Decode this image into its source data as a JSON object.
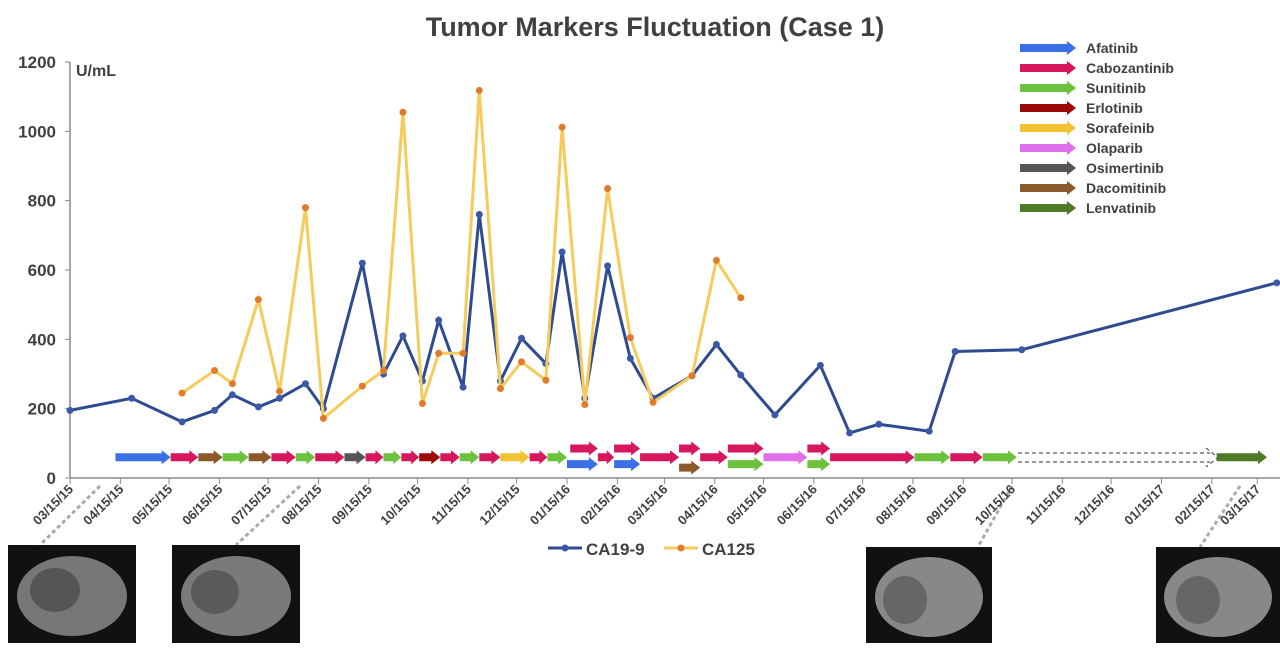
{
  "chart_data": {
    "type": "line",
    "title": "Tumor Markers Fluctuation (Case 1)",
    "y_unit": "U/mL",
    "xlim": [
      "2015-03-15",
      "2017-03-29"
    ],
    "ylim": [
      0,
      1200
    ],
    "yticks": [
      0,
      200,
      400,
      600,
      800,
      1000,
      1200
    ],
    "xticks": [
      {
        "value": "2015-03-15",
        "label": "03/15/15"
      },
      {
        "value": "2015-04-15",
        "label": "04/15/15"
      },
      {
        "value": "2015-05-15",
        "label": "05/15/15"
      },
      {
        "value": "2015-06-15",
        "label": "06/15/15"
      },
      {
        "value": "2015-07-15",
        "label": "07/15/15"
      },
      {
        "value": "2015-08-15",
        "label": "08/15/15"
      },
      {
        "value": "2015-09-15",
        "label": "09/15/15"
      },
      {
        "value": "2015-10-15",
        "label": "10/15/15"
      },
      {
        "value": "2015-11-15",
        "label": "11/15/15"
      },
      {
        "value": "2015-12-15",
        "label": "12/15/15"
      },
      {
        "value": "2016-01-15",
        "label": "01/15/16"
      },
      {
        "value": "2016-02-15",
        "label": "02/15/16"
      },
      {
        "value": "2016-03-15",
        "label": "03/15/16"
      },
      {
        "value": "2016-04-15",
        "label": "04/15/16"
      },
      {
        "value": "2016-05-15",
        "label": "05/15/16"
      },
      {
        "value": "2016-06-15",
        "label": "06/15/16"
      },
      {
        "value": "2016-07-15",
        "label": "07/15/16"
      },
      {
        "value": "2016-08-15",
        "label": "08/15/16"
      },
      {
        "value": "2016-09-15",
        "label": "09/15/16"
      },
      {
        "value": "2016-10-15",
        "label": "10/15/16"
      },
      {
        "value": "2016-11-15",
        "label": "11/15/16"
      },
      {
        "value": "2016-12-15",
        "label": "12/15/16"
      },
      {
        "value": "2017-01-15",
        "label": "01/15/17"
      },
      {
        "value": "2017-02-15",
        "label": "02/15/17"
      },
      {
        "value": "2017-03-15",
        "label": "03/15/17"
      }
    ],
    "x": [
      "2015-03-15",
      "2015-04-22",
      "2015-05-23",
      "2015-06-12",
      "2015-06-23",
      "2015-07-09",
      "2015-07-22",
      "2015-08-07",
      "2015-08-18",
      "2015-09-11",
      "2015-09-24",
      "2015-10-06",
      "2015-10-18",
      "2015-10-28",
      "2015-11-12",
      "2015-11-22",
      "2015-12-05",
      "2015-12-18",
      "2016-01-02",
      "2016-01-12",
      "2016-01-26",
      "2016-02-09",
      "2016-02-23",
      "2016-03-08",
      "2016-04-01",
      "2016-04-16",
      "2016-05-01",
      "2016-05-22",
      "2016-06-19",
      "2016-07-07",
      "2016-07-25",
      "2016-08-25",
      "2016-09-10",
      "2016-10-21",
      "2017-03-27"
    ],
    "series": [
      {
        "name": "CA19-9",
        "color": "#2f4b8f",
        "marker_color": "#3a5aa8",
        "values": [
          195,
          230,
          162,
          195,
          240,
          205,
          230,
          272,
          200,
          620,
          300,
          410,
          280,
          455,
          262,
          760,
          280,
          403,
          330,
          652,
          230,
          612,
          345,
          230,
          295,
          385,
          297,
          182,
          325,
          130,
          155,
          135,
          365,
          370,
          563
        ]
      },
      {
        "name": "CA125",
        "color": "#f5cb5c",
        "marker_color": "#e07b2a",
        "values": [
          null,
          null,
          245,
          310,
          272,
          515,
          250,
          780,
          172,
          265,
          310,
          1055,
          215,
          360,
          360,
          1118,
          258,
          335,
          282,
          1012,
          212,
          835,
          405,
          218,
          295,
          628,
          520,
          null,
          null,
          null,
          null,
          null,
          null,
          null,
          null
        ]
      }
    ],
    "drugs": [
      {
        "name": "Afatinib",
        "color": "#3b6fe6",
        "periods": [
          {
            "start": "2015-04-12",
            "end": "2015-05-16",
            "y": 60
          },
          {
            "start": "2016-01-15",
            "end": "2016-02-03",
            "y": 40
          },
          {
            "start": "2016-02-13",
            "end": "2016-02-29",
            "y": 40
          }
        ]
      },
      {
        "name": "Cabozantinib",
        "color": "#d6175e",
        "periods": [
          {
            "start": "2015-05-16",
            "end": "2015-06-02",
            "y": 60
          },
          {
            "start": "2015-07-17",
            "end": "2015-08-01",
            "y": 60
          },
          {
            "start": "2015-08-13",
            "end": "2015-08-31",
            "y": 60
          },
          {
            "start": "2015-09-13",
            "end": "2015-09-24",
            "y": 60
          },
          {
            "start": "2015-10-05",
            "end": "2015-10-16",
            "y": 60
          },
          {
            "start": "2015-10-29",
            "end": "2015-11-10",
            "y": 60
          },
          {
            "start": "2015-11-22",
            "end": "2015-12-05",
            "y": 60
          },
          {
            "start": "2015-12-23",
            "end": "2016-01-03",
            "y": 60
          },
          {
            "start": "2016-01-17",
            "end": "2016-02-03",
            "y": 85
          },
          {
            "start": "2016-02-03",
            "end": "2016-02-13",
            "y": 60
          },
          {
            "start": "2016-02-13",
            "end": "2016-02-29",
            "y": 85
          },
          {
            "start": "2016-02-29",
            "end": "2016-03-24",
            "y": 60
          },
          {
            "start": "2016-03-24",
            "end": "2016-04-06",
            "y": 85
          },
          {
            "start": "2016-04-06",
            "end": "2016-04-23",
            "y": 60
          },
          {
            "start": "2016-04-23",
            "end": "2016-05-15",
            "y": 85
          },
          {
            "start": "2016-06-11",
            "end": "2016-06-25",
            "y": 85
          },
          {
            "start": "2016-06-25",
            "end": "2016-08-16",
            "y": 60
          },
          {
            "start": "2016-09-07",
            "end": "2016-09-27",
            "y": 60
          }
        ]
      },
      {
        "name": "Sunitinib",
        "color": "#6cc23c",
        "periods": [
          {
            "start": "2015-06-17",
            "end": "2015-07-03",
            "y": 60
          },
          {
            "start": "2015-08-01",
            "end": "2015-08-13",
            "y": 60
          },
          {
            "start": "2015-09-24",
            "end": "2015-10-05",
            "y": 60
          },
          {
            "start": "2015-11-10",
            "end": "2015-11-22",
            "y": 60
          },
          {
            "start": "2016-01-03",
            "end": "2016-01-15",
            "y": 60
          },
          {
            "start": "2016-04-23",
            "end": "2016-05-15",
            "y": 40
          },
          {
            "start": "2016-06-11",
            "end": "2016-06-25",
            "y": 40
          },
          {
            "start": "2016-08-16",
            "end": "2016-09-07",
            "y": 60
          },
          {
            "start": "2016-09-27",
            "end": "2016-10-18",
            "y": 60
          }
        ]
      },
      {
        "name": "Erlotinib",
        "color": "#9b0a0a",
        "periods": [
          {
            "start": "2015-10-16",
            "end": "2015-10-29",
            "y": 60
          }
        ]
      },
      {
        "name": "Sorafeinib",
        "color": "#f2c232",
        "periods": [
          {
            "start": "2015-12-05",
            "end": "2015-12-23",
            "y": 60
          }
        ]
      },
      {
        "name": "Olaparib",
        "color": "#e070ea",
        "periods": [
          {
            "start": "2016-05-15",
            "end": "2016-06-11",
            "y": 60
          }
        ]
      },
      {
        "name": "Osimertinib",
        "color": "#555555",
        "periods": [
          {
            "start": "2015-08-31",
            "end": "2015-09-13",
            "y": 60
          }
        ]
      },
      {
        "name": "Dacomitinib",
        "color": "#8b5a2b",
        "periods": [
          {
            "start": "2015-06-02",
            "end": "2015-06-17",
            "y": 60
          },
          {
            "start": "2015-07-03",
            "end": "2015-07-17",
            "y": 60
          },
          {
            "start": "2016-03-24",
            "end": "2016-04-06",
            "y": 30
          }
        ]
      },
      {
        "name": "Lenvatinib",
        "color": "#4f7a28",
        "periods": [
          {
            "start": "2017-02-18",
            "end": "2017-03-21",
            "y": 60
          }
        ]
      }
    ]
  }
}
